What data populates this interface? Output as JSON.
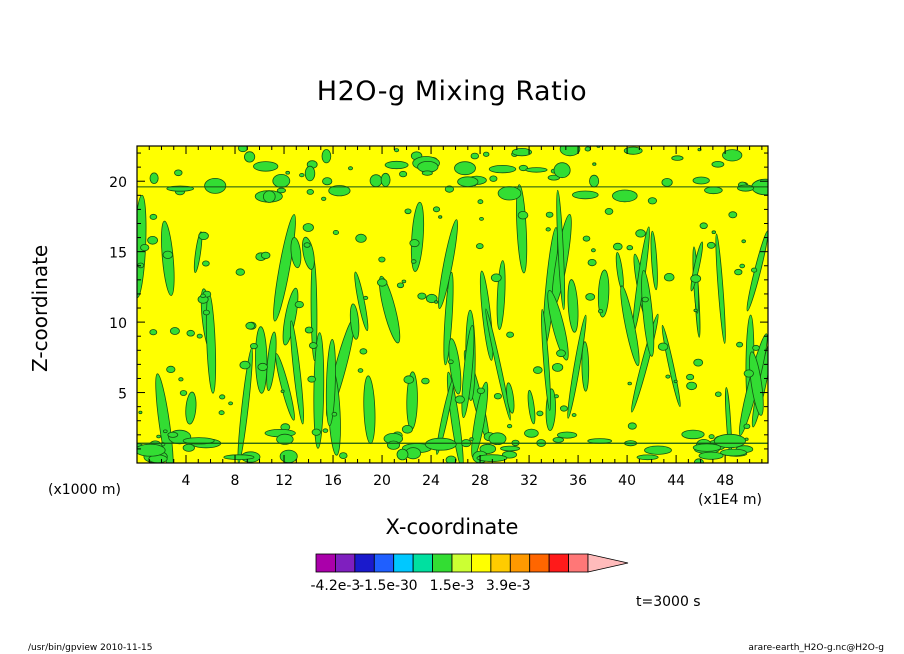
{
  "chart_data": {
    "type": "heatmap",
    "title": "H2O-g Mixing Ratio",
    "xlabel": "X-coordinate",
    "ylabel": "Z-coordinate",
    "x_unit": "(x1E4 m)",
    "y_unit": "(x1000 m)",
    "xlim": [
      0,
      51.5
    ],
    "ylim": [
      0,
      22.5
    ],
    "x_ticks": [
      4,
      8,
      12,
      16,
      20,
      24,
      28,
      32,
      36,
      40,
      44,
      48
    ],
    "y_ticks": [
      5,
      10,
      15,
      20
    ],
    "colorbar": {
      "colors": [
        "#aa00aa",
        "#7f1fbf",
        "#1a1acc",
        "#1f5fff",
        "#00c8ff",
        "#00e0a0",
        "#33dd33",
        "#ccff33",
        "#ffff00",
        "#ffcc00",
        "#ff9900",
        "#ff6600",
        "#ff1a1a",
        "#ff7777",
        "#ffbbbb"
      ],
      "labels": [
        "-4.2e-3",
        "-1.5e-3",
        "0",
        "1.5e-3",
        "3.9e-3"
      ]
    },
    "background_color": "#ffff00",
    "anomaly_color": "#33dd33",
    "time": "t=3000 s"
  },
  "footer": {
    "left": "/usr/bin/gpview   2010-11-15",
    "right": "arare-earth_H2O-g.nc@H2O-g"
  }
}
